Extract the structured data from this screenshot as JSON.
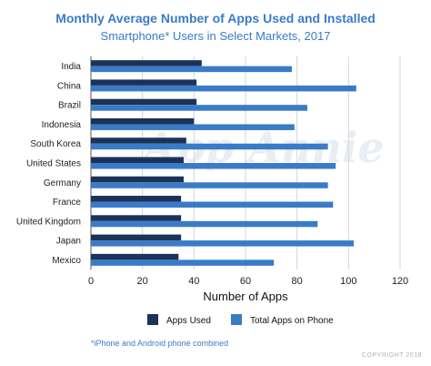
{
  "chart_data": {
    "type": "bar",
    "orientation": "horizontal",
    "title": "Monthly Average Number of Apps Used and Installed",
    "subtitle": "Smartphone* Users in Select Markets, 2017",
    "xlabel": "Number of Apps",
    "ylabel": "",
    "xlim": [
      0,
      120
    ],
    "xticks": [
      0,
      20,
      40,
      60,
      80,
      100,
      120
    ],
    "grid": "vertical",
    "legend_position": "bottom",
    "categories": [
      "India",
      "China",
      "Brazil",
      "Indonesia",
      "South Korea",
      "United States",
      "Germany",
      "France",
      "United Kingdom",
      "Japan",
      "Mexico"
    ],
    "series": [
      {
        "name": "Apps Used",
        "color": "#1b3358",
        "values": [
          43,
          41,
          41,
          40,
          37,
          36,
          36,
          35,
          35,
          35,
          34
        ]
      },
      {
        "name": "Total Apps on Phone",
        "color": "#3a7bc8",
        "values": [
          78,
          103,
          84,
          79,
          92,
          95,
          92,
          94,
          88,
          102,
          71
        ]
      }
    ]
  },
  "footnote": "*iPhone and Android phone combined",
  "watermark": "App Annie",
  "copyright": "COPYRIGHT 2018"
}
